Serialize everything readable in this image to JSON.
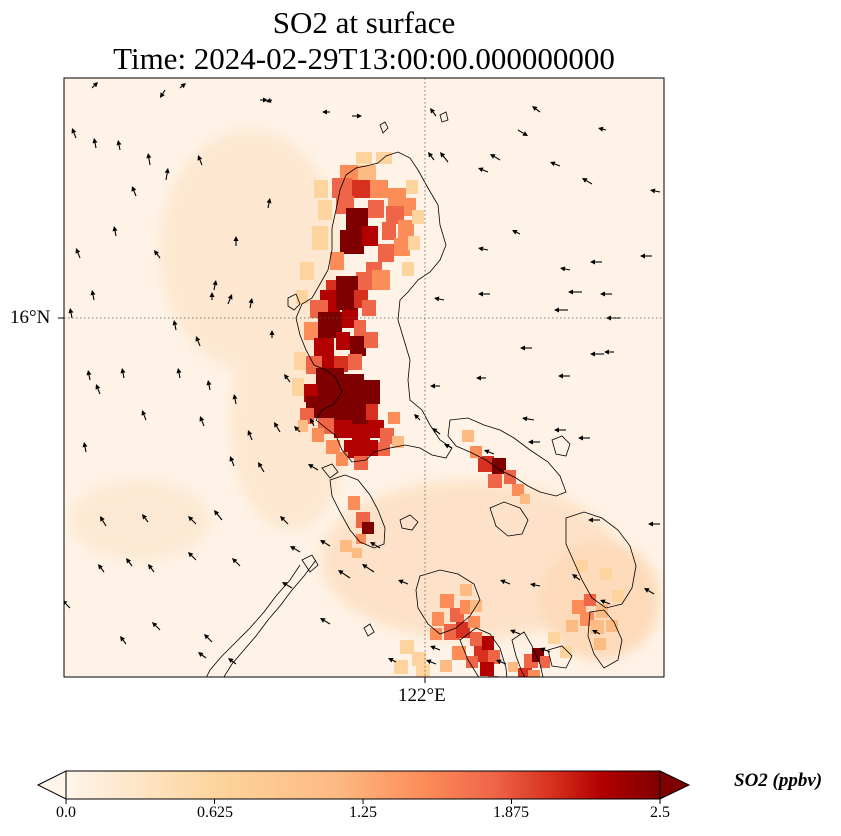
{
  "title": {
    "line1": "SO2 at surface",
    "line2": "Time: 2024-02-29T13:00:00.000000000"
  },
  "map": {
    "variable": "SO2",
    "level": "surface",
    "lat_ticks": [
      "16°N"
    ],
    "lon_ticks": [
      "122°E"
    ],
    "gridlines": "dotted",
    "overlays": [
      "coastlines",
      "wind-vectors"
    ]
  },
  "colorbar": {
    "label": "SO2 (ppbv)",
    "ticks": [
      "0.0",
      "0.625",
      "1.25",
      "1.875",
      "2.5"
    ],
    "range": [
      0.0,
      2.5
    ],
    "extend": "both",
    "colors": [
      "#fff5eb",
      "#fdd49e",
      "#fdbb84",
      "#fc8d59",
      "#ef6548",
      "#d7301f",
      "#b30000",
      "#7f0000"
    ]
  }
}
